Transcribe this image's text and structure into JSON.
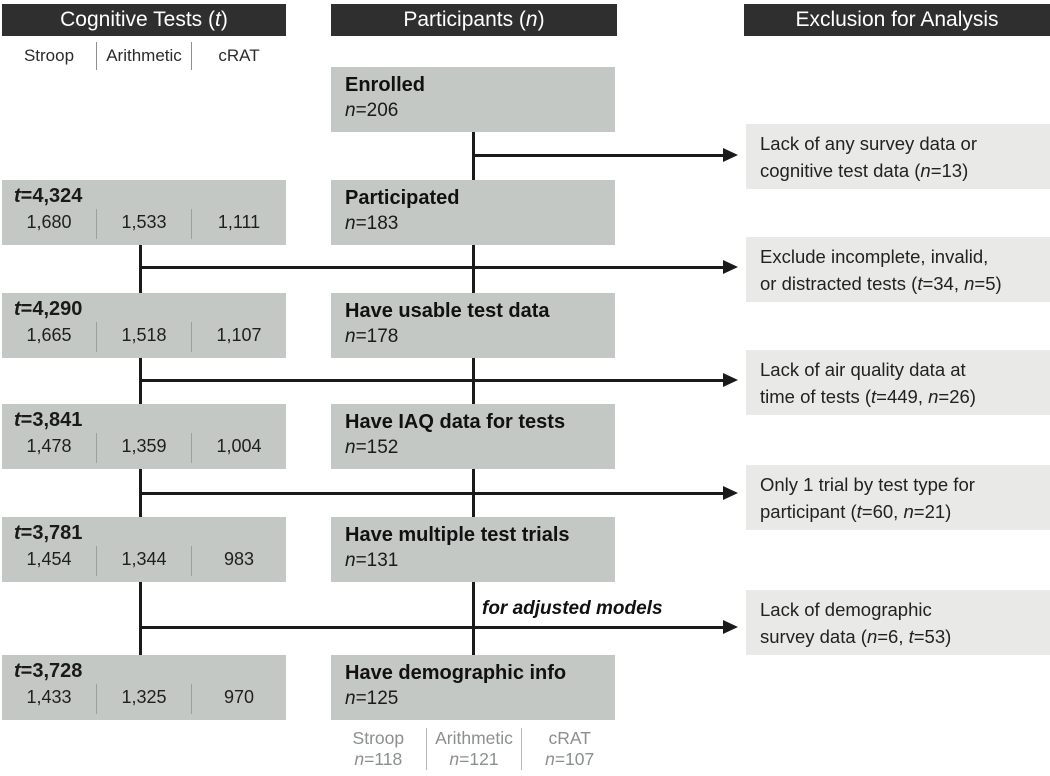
{
  "headers": {
    "cognitive_tests": [
      [
        {
          "t": "Cognitive Tests ("
        },
        {
          "t": "t",
          "i": true
        },
        {
          "t": ")"
        }
      ]
    ],
    "participants": [
      [
        {
          "t": "Participants ("
        },
        {
          "t": "n",
          "i": true
        },
        {
          "t": ")"
        }
      ]
    ],
    "exclusion": [
      [
        {
          "t": "Exclusion for Analysis"
        }
      ]
    ]
  },
  "test_columns": [
    "Stroop",
    "Arithmetic",
    "cRAT"
  ],
  "left_boxes": [
    {
      "t_line": [
        [
          {
            "t": "t",
            "i": true
          },
          {
            "t": "=4,324"
          }
        ]
      ],
      "cells": [
        "1,680",
        "1,533",
        "1,111"
      ]
    },
    {
      "t_line": [
        [
          {
            "t": "t",
            "i": true
          },
          {
            "t": "=4,290"
          }
        ]
      ],
      "cells": [
        "1,665",
        "1,518",
        "1,107"
      ]
    },
    {
      "t_line": [
        [
          {
            "t": "t",
            "i": true
          },
          {
            "t": "=3,841"
          }
        ]
      ],
      "cells": [
        "1,478",
        "1,359",
        "1,004"
      ]
    },
    {
      "t_line": [
        [
          {
            "t": "t",
            "i": true
          },
          {
            "t": "=3,781"
          }
        ]
      ],
      "cells": [
        "1,454",
        "1,344",
        "983"
      ]
    },
    {
      "t_line": [
        [
          {
            "t": "t",
            "i": true
          },
          {
            "t": "=3,728"
          }
        ]
      ],
      "cells": [
        "1,433",
        "1,325",
        "970"
      ]
    }
  ],
  "middle_boxes": [
    {
      "title": "Enrolled",
      "n_line": [
        [
          {
            "t": "n",
            "i": true
          },
          {
            "t": "=206"
          }
        ]
      ]
    },
    {
      "title": "Participated",
      "n_line": [
        [
          {
            "t": "n",
            "i": true
          },
          {
            "t": "=183"
          }
        ]
      ]
    },
    {
      "title": "Have usable test data",
      "n_line": [
        [
          {
            "t": "n",
            "i": true
          },
          {
            "t": "=178"
          }
        ]
      ]
    },
    {
      "title": "Have IAQ data for tests",
      "n_line": [
        [
          {
            "t": "n",
            "i": true
          },
          {
            "t": "=152"
          }
        ]
      ]
    },
    {
      "title": "Have multiple test trials",
      "n_line": [
        [
          {
            "t": "n",
            "i": true
          },
          {
            "t": "=131"
          }
        ]
      ]
    },
    {
      "title": "Have demographic info",
      "n_line": [
        [
          {
            "t": "n",
            "i": true
          },
          {
            "t": "=125"
          }
        ]
      ]
    }
  ],
  "exclusion_boxes": [
    {
      "lines": [
        [
          {
            "t": "Lack of any survey data or"
          }
        ],
        [
          {
            "t": "cognitive test data ("
          },
          {
            "t": "n",
            "i": true
          },
          {
            "t": "=13)"
          }
        ]
      ]
    },
    {
      "lines": [
        [
          {
            "t": "Exclude incomplete, invalid,"
          }
        ],
        [
          {
            "t": "or distracted tests ("
          },
          {
            "t": "t",
            "i": true
          },
          {
            "t": "=34, "
          },
          {
            "t": "n",
            "i": true
          },
          {
            "t": "=5)"
          }
        ]
      ]
    },
    {
      "lines": [
        [
          {
            "t": "Lack of air quality data at"
          }
        ],
        [
          {
            "t": "time of tests ("
          },
          {
            "t": "t",
            "i": true
          },
          {
            "t": "=449, "
          },
          {
            "t": "n",
            "i": true
          },
          {
            "t": "=26)"
          }
        ]
      ]
    },
    {
      "lines": [
        [
          {
            "t": "Only 1 trial by test type for"
          }
        ],
        [
          {
            "t": "participant ("
          },
          {
            "t": "t",
            "i": true
          },
          {
            "t": "=60, "
          },
          {
            "t": "n",
            "i": true
          },
          {
            "t": "=21)"
          }
        ]
      ]
    },
    {
      "lines": [
        [
          {
            "t": "Lack of demographic"
          }
        ],
        [
          {
            "t": "survey data ("
          },
          {
            "t": "n",
            "i": true
          },
          {
            "t": "=6, "
          },
          {
            "t": "t",
            "i": true
          },
          {
            "t": "=53)"
          }
        ]
      ]
    }
  ],
  "adjusted_label": "for adjusted models",
  "bottom_counts": [
    {
      "lines": [
        [
          {
            "t": "Stroop"
          }
        ],
        [
          {
            "t": "n",
            "i": true
          },
          {
            "t": "=118"
          }
        ]
      ]
    },
    {
      "lines": [
        [
          {
            "t": "Arithmetic"
          }
        ],
        [
          {
            "t": "n",
            "i": true
          },
          {
            "t": "=121"
          }
        ]
      ]
    },
    {
      "lines": [
        [
          {
            "t": "cRAT"
          }
        ],
        [
          {
            "t": "n",
            "i": true
          },
          {
            "t": "=107"
          }
        ]
      ]
    }
  ],
  "colors": {
    "header_bg": "#2f2f2f",
    "header_text": "#ffffff",
    "flow_box_gray": "#c4c8c5",
    "exclusion_box_gray": "#e9e9e8",
    "connector_black": "#1a1a1a",
    "muted_text_gray": "#8b908c"
  }
}
